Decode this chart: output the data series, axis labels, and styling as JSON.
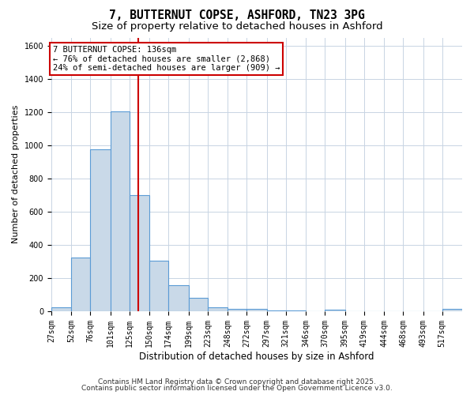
{
  "title": "7, BUTTERNUT COPSE, ASHFORD, TN23 3PG",
  "subtitle": "Size of property relative to detached houses in Ashford",
  "xlabel": "Distribution of detached houses by size in Ashford",
  "ylabel": "Number of detached properties",
  "footnote1": "Contains HM Land Registry data © Crown copyright and database right 2025.",
  "footnote2": "Contains public sector information licensed under the Open Government Licence v3.0.",
  "bin_labels": [
    "27sqm",
    "52sqm",
    "76sqm",
    "101sqm",
    "125sqm",
    "150sqm",
    "174sqm",
    "199sqm",
    "223sqm",
    "248sqm",
    "272sqm",
    "297sqm",
    "321sqm",
    "346sqm",
    "370sqm",
    "395sqm",
    "419sqm",
    "444sqm",
    "468sqm",
    "493sqm",
    "517sqm"
  ],
  "bar_heights": [
    25,
    325,
    975,
    1205,
    700,
    305,
    158,
    80,
    25,
    15,
    12,
    5,
    5,
    0,
    8,
    0,
    0,
    0,
    0,
    0,
    15
  ],
  "bar_color": "#c9d9e8",
  "bar_edge_color": "#5b9bd5",
  "grid_color": "#c8d4e3",
  "vline_x": 136,
  "vline_color": "#cc0000",
  "annotation_line1": "7 BUTTERNUT COPSE: 136sqm",
  "annotation_line2": "← 76% of detached houses are smaller (2,868)",
  "annotation_line3": "24% of semi-detached houses are larger (909) →",
  "annotation_box_color": "#ffffff",
  "annotation_border_color": "#cc0000",
  "bin_edges": [
    27,
    52,
    76,
    101,
    125,
    150,
    174,
    199,
    223,
    248,
    272,
    297,
    321,
    346,
    370,
    395,
    419,
    444,
    468,
    493,
    517,
    542
  ],
  "ylim": [
    0,
    1650
  ],
  "yticks": [
    0,
    200,
    400,
    600,
    800,
    1000,
    1200,
    1400,
    1600
  ],
  "bg_color": "#ffffff",
  "title_fontsize": 10.5,
  "subtitle_fontsize": 9.5,
  "ylabel_fontsize": 8,
  "xlabel_fontsize": 8.5,
  "tick_fontsize": 7,
  "annotation_fontsize": 7.5,
  "footnote_fontsize": 6.5
}
